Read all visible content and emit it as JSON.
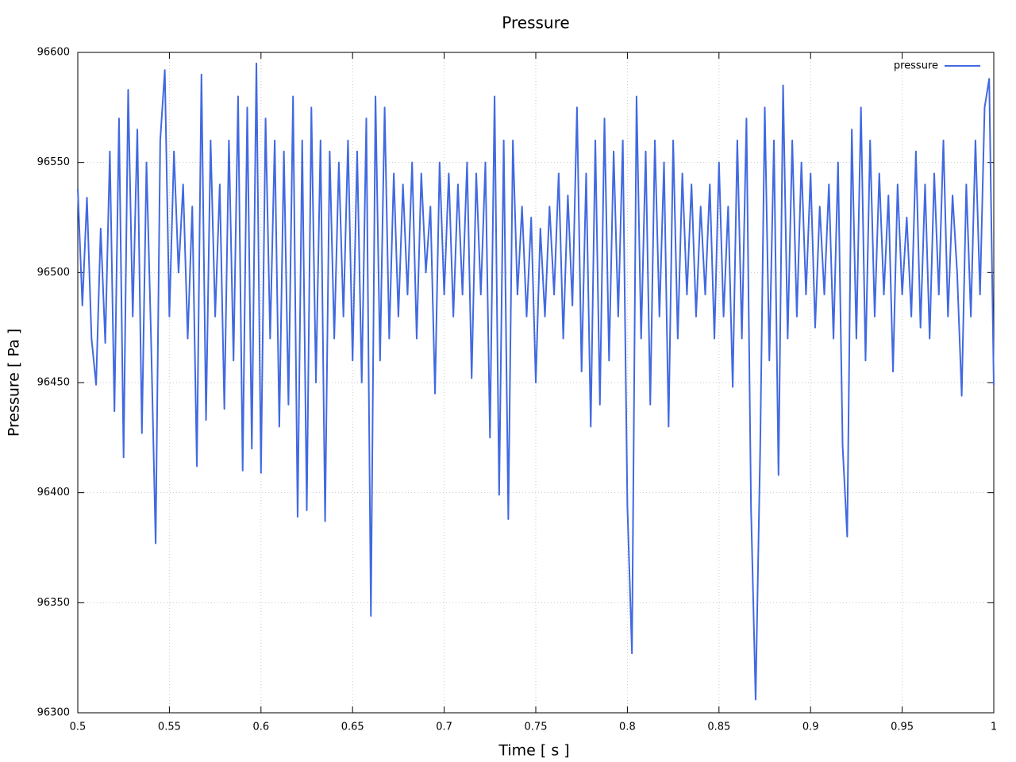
{
  "chart_data": {
    "type": "line",
    "title": "Pressure",
    "xlabel": "Time [ s ]",
    "ylabel": "Pressure [ Pa ]",
    "x": [
      0.5,
      0.5025,
      0.505,
      0.5075,
      0.51,
      0.5125,
      0.515,
      0.5175,
      0.52,
      0.5225,
      0.525,
      0.5275,
      0.53,
      0.5325,
      0.535,
      0.5375,
      0.54,
      0.5425,
      0.545,
      0.5475,
      0.55,
      0.5525,
      0.555,
      0.5575,
      0.56,
      0.5625,
      0.565,
      0.5675,
      0.57,
      0.5725,
      0.575,
      0.5775,
      0.58,
      0.5825,
      0.585,
      0.5875,
      0.59,
      0.5925,
      0.595,
      0.5975,
      0.6,
      0.6025,
      0.605,
      0.6075,
      0.61,
      0.6125,
      0.615,
      0.6175,
      0.62,
      0.6225,
      0.625,
      0.6275,
      0.63,
      0.6325,
      0.635,
      0.6375,
      0.64,
      0.6425,
      0.645,
      0.6475,
      0.65,
      0.6525,
      0.655,
      0.6575,
      0.66,
      0.6625,
      0.665,
      0.6675,
      0.67,
      0.6725,
      0.675,
      0.6775,
      0.68,
      0.6825,
      0.685,
      0.6875,
      0.69,
      0.6925,
      0.695,
      0.6975,
      0.7,
      0.7025,
      0.705,
      0.7075,
      0.71,
      0.7125,
      0.715,
      0.7175,
      0.72,
      0.7225,
      0.725,
      0.7275,
      0.73,
      0.7325,
      0.735,
      0.7375,
      0.74,
      0.7425,
      0.745,
      0.7475,
      0.75,
      0.7525,
      0.755,
      0.7575,
      0.76,
      0.7625,
      0.765,
      0.7675,
      0.77,
      0.7725,
      0.775,
      0.7775,
      0.78,
      0.7825,
      0.785,
      0.7875,
      0.79,
      0.7925,
      0.795,
      0.7975,
      0.8,
      0.8025,
      0.805,
      0.8075,
      0.81,
      0.8125,
      0.815,
      0.8175,
      0.82,
      0.8225,
      0.825,
      0.8275,
      0.83,
      0.8325,
      0.835,
      0.8375,
      0.84,
      0.8425,
      0.845,
      0.8475,
      0.85,
      0.8525,
      0.855,
      0.8575,
      0.86,
      0.8625,
      0.865,
      0.8675,
      0.87,
      0.8725,
      0.875,
      0.8775,
      0.88,
      0.8825,
      0.885,
      0.8875,
      0.89,
      0.8925,
      0.895,
      0.8975,
      0.9,
      0.9025,
      0.905,
      0.9075,
      0.91,
      0.9125,
      0.915,
      0.9175,
      0.92,
      0.9225,
      0.925,
      0.9275,
      0.93,
      0.9325,
      0.935,
      0.9375,
      0.94,
      0.9425,
      0.945,
      0.9475,
      0.95,
      0.9525,
      0.955,
      0.9575,
      0.96,
      0.9625,
      0.965,
      0.9675,
      0.97,
      0.9725,
      0.975,
      0.9775,
      0.98,
      0.9825,
      0.985,
      0.9875,
      0.99,
      0.9925,
      0.995,
      0.9975,
      1
    ],
    "series": [
      {
        "name": "pressure",
        "color": "#4169e1",
        "values": [
          96538,
          96485,
          96534,
          96470,
          96449,
          96520,
          96468,
          96555,
          96437,
          96570,
          96416,
          96583,
          96480,
          96565,
          96427,
          96550,
          96470,
          96377,
          96560,
          96592,
          96480,
          96555,
          96500,
          96540,
          96470,
          96530,
          96412,
          96590,
          96433,
          96560,
          96480,
          96540,
          96438,
          96560,
          96460,
          96580,
          96410,
          96575,
          96420,
          96595,
          96409,
          96570,
          96470,
          96560,
          96430,
          96555,
          96440,
          96580,
          96389,
          96560,
          96392,
          96575,
          96450,
          96560,
          96387,
          96555,
          96470,
          96550,
          96480,
          96560,
          96460,
          96555,
          96450,
          96570,
          96344,
          96580,
          96460,
          96575,
          96470,
          96545,
          96480,
          96540,
          96490,
          96550,
          96470,
          96545,
          96500,
          96530,
          96445,
          96550,
          96490,
          96545,
          96480,
          96540,
          96490,
          96550,
          96452,
          96545,
          96490,
          96550,
          96425,
          96580,
          96399,
          96560,
          96388,
          96560,
          96490,
          96530,
          96480,
          96525,
          96450,
          96520,
          96480,
          96530,
          96490,
          96545,
          96470,
          96535,
          96485,
          96575,
          96455,
          96545,
          96430,
          96560,
          96440,
          96570,
          96460,
          96555,
          96480,
          96560,
          96394,
          96327,
          96580,
          96470,
          96555,
          96440,
          96560,
          96480,
          96550,
          96430,
          96560,
          96470,
          96545,
          96490,
          96540,
          96480,
          96530,
          96490,
          96540,
          96470,
          96550,
          96480,
          96530,
          96448,
          96560,
          96470,
          96570,
          96393,
          96306,
          96420,
          96575,
          96460,
          96560,
          96408,
          96585,
          96470,
          96560,
          96480,
          96550,
          96490,
          96545,
          96475,
          96530,
          96490,
          96540,
          96470,
          96550,
          96421,
          96380,
          96565,
          96470,
          96575,
          96460,
          96560,
          96480,
          96545,
          96490,
          96535,
          96455,
          96540,
          96490,
          96525,
          96480,
          96555,
          96475,
          96540,
          96470,
          96545,
          96490,
          96560,
          96480,
          96535,
          96500,
          96444,
          96540,
          96480,
          96560,
          96490,
          96575,
          96588,
          96449
        ]
      }
    ],
    "xlim": [
      0.5,
      1
    ],
    "xticks": [
      0.5,
      0.55,
      0.6,
      0.65,
      0.7,
      0.75,
      0.8,
      0.85,
      0.9,
      0.95,
      1
    ],
    "ylim": [
      96300,
      96600
    ],
    "yticks": [
      96300,
      96350,
      96400,
      96450,
      96500,
      96550,
      96600
    ],
    "grid": true,
    "legend": "top-right"
  }
}
